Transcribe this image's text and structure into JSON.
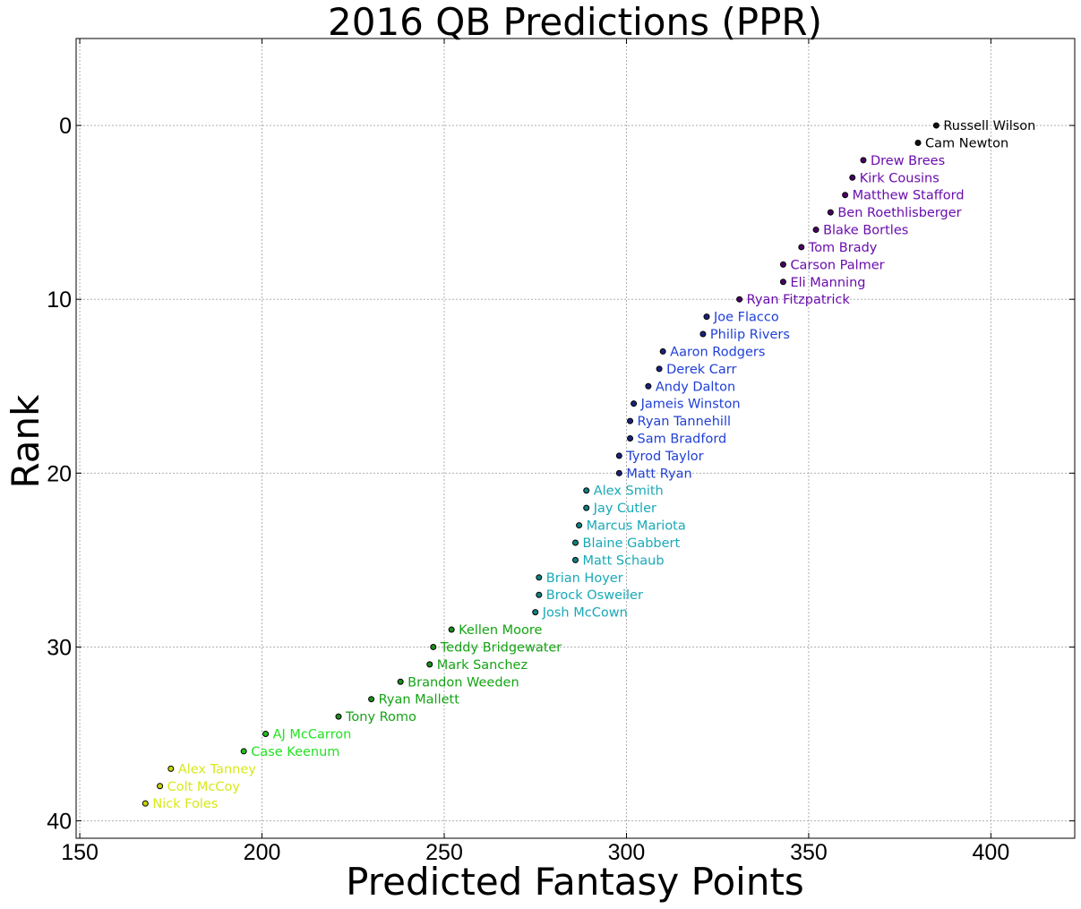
{
  "chart_data": {
    "type": "scatter",
    "title": "2016 QB Predictions (PPR)",
    "xlabel": "Predicted Fantasy Points",
    "ylabel": "Rank",
    "xlim": [
      149,
      423
    ],
    "ylim": [
      41,
      -5
    ],
    "y_inverted": true,
    "xticks": [
      150,
      200,
      250,
      300,
      350,
      400
    ],
    "yticks": [
      0,
      10,
      20,
      30,
      40
    ],
    "grid": true,
    "legend": "none",
    "tiers": [
      {
        "tier": 1,
        "color": "#000000",
        "marker_color": "#111111"
      },
      {
        "tier": 2,
        "color": "#6a0dad",
        "marker_color": "#4b0066"
      },
      {
        "tier": 3,
        "color": "#1f3fd6",
        "marker_color": "#1a237e"
      },
      {
        "tier": 4,
        "color": "#19a9b7",
        "marker_color": "#0f8080"
      },
      {
        "tier": 5,
        "color": "#14a314",
        "marker_color": "#1c8c1c"
      },
      {
        "tier": 6,
        "color": "#22e222",
        "marker_color": "#1fbf1f"
      },
      {
        "tier": 7,
        "color": "#d8e81a",
        "marker_color": "#c8d400"
      }
    ],
    "points": [
      {
        "name": "Russell Wilson",
        "rank": 0,
        "points": 385,
        "tier": 1
      },
      {
        "name": "Cam Newton",
        "rank": 1,
        "points": 380,
        "tier": 1
      },
      {
        "name": "Drew Brees",
        "rank": 2,
        "points": 365,
        "tier": 2
      },
      {
        "name": "Kirk Cousins",
        "rank": 3,
        "points": 362,
        "tier": 2
      },
      {
        "name": "Matthew Stafford",
        "rank": 4,
        "points": 360,
        "tier": 2
      },
      {
        "name": "Ben Roethlisberger",
        "rank": 5,
        "points": 356,
        "tier": 2
      },
      {
        "name": "Blake Bortles",
        "rank": 6,
        "points": 352,
        "tier": 2
      },
      {
        "name": "Tom Brady",
        "rank": 7,
        "points": 348,
        "tier": 2
      },
      {
        "name": "Carson Palmer",
        "rank": 8,
        "points": 343,
        "tier": 2
      },
      {
        "name": "Eli Manning",
        "rank": 9,
        "points": 343,
        "tier": 2
      },
      {
        "name": "Ryan Fitzpatrick",
        "rank": 10,
        "points": 331,
        "tier": 2
      },
      {
        "name": "Joe Flacco",
        "rank": 11,
        "points": 322,
        "tier": 3
      },
      {
        "name": "Philip Rivers",
        "rank": 12,
        "points": 321,
        "tier": 3
      },
      {
        "name": "Aaron Rodgers",
        "rank": 13,
        "points": 310,
        "tier": 3
      },
      {
        "name": "Derek Carr",
        "rank": 14,
        "points": 309,
        "tier": 3
      },
      {
        "name": "Andy Dalton",
        "rank": 15,
        "points": 306,
        "tier": 3
      },
      {
        "name": "Jameis Winston",
        "rank": 16,
        "points": 302,
        "tier": 3
      },
      {
        "name": "Ryan Tannehill",
        "rank": 17,
        "points": 301,
        "tier": 3
      },
      {
        "name": "Sam Bradford",
        "rank": 18,
        "points": 301,
        "tier": 3
      },
      {
        "name": "Tyrod Taylor",
        "rank": 19,
        "points": 298,
        "tier": 3
      },
      {
        "name": "Matt Ryan",
        "rank": 20,
        "points": 298,
        "tier": 3
      },
      {
        "name": "Alex Smith",
        "rank": 21,
        "points": 289,
        "tier": 4
      },
      {
        "name": "Jay Cutler",
        "rank": 22,
        "points": 289,
        "tier": 4
      },
      {
        "name": "Marcus Mariota",
        "rank": 23,
        "points": 287,
        "tier": 4
      },
      {
        "name": "Blaine Gabbert",
        "rank": 24,
        "points": 286,
        "tier": 4
      },
      {
        "name": "Matt Schaub",
        "rank": 25,
        "points": 286,
        "tier": 4
      },
      {
        "name": "Brian Hoyer",
        "rank": 26,
        "points": 276,
        "tier": 4
      },
      {
        "name": "Brock Osweiler",
        "rank": 27,
        "points": 276,
        "tier": 4
      },
      {
        "name": "Josh McCown",
        "rank": 28,
        "points": 275,
        "tier": 4
      },
      {
        "name": "Kellen Moore",
        "rank": 29,
        "points": 252,
        "tier": 5
      },
      {
        "name": "Teddy Bridgewater",
        "rank": 30,
        "points": 247,
        "tier": 5
      },
      {
        "name": "Mark Sanchez",
        "rank": 31,
        "points": 246,
        "tier": 5
      },
      {
        "name": "Brandon Weeden",
        "rank": 32,
        "points": 238,
        "tier": 5
      },
      {
        "name": "Ryan Mallett",
        "rank": 33,
        "points": 230,
        "tier": 5
      },
      {
        "name": "Tony Romo",
        "rank": 34,
        "points": 221,
        "tier": 5
      },
      {
        "name": "AJ McCarron",
        "rank": 35,
        "points": 201,
        "tier": 6
      },
      {
        "name": "Case Keenum",
        "rank": 36,
        "points": 195,
        "tier": 6
      },
      {
        "name": "Alex Tanney",
        "rank": 37,
        "points": 175,
        "tier": 7
      },
      {
        "name": "Colt McCoy",
        "rank": 38,
        "points": 172,
        "tier": 7
      },
      {
        "name": "Nick Foles",
        "rank": 39,
        "points": 168,
        "tier": 7
      }
    ]
  }
}
